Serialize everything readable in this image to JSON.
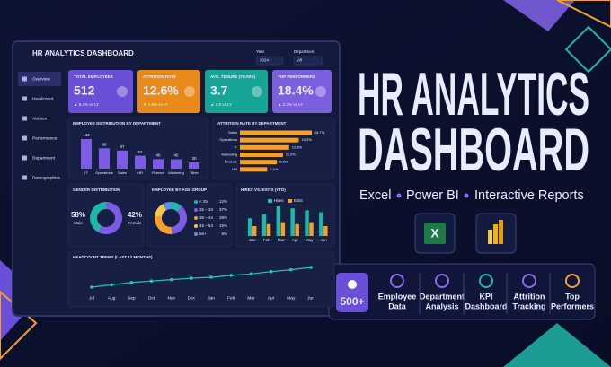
{
  "banner": {
    "title_lines": [
      "HR ANALYTICS",
      "DASHBOARD"
    ],
    "tools": [
      "Excel",
      "Power BI",
      "Interactive Reports"
    ],
    "badge": "500+",
    "features": [
      {
        "lines": [
          "Employee",
          "Data"
        ]
      },
      {
        "lines": [
          "Department",
          "Analysis"
        ]
      },
      {
        "lines": [
          "KPI",
          "Dashboard"
        ]
      },
      {
        "lines": [
          "Attrition",
          "Tracking"
        ]
      },
      {
        "lines": [
          "Top",
          "Performers"
        ]
      }
    ]
  },
  "dashboard": {
    "title": "HR ANALYTICS DASHBOARD",
    "filters": [
      {
        "label": "Year",
        "value": "2024"
      },
      {
        "label": "Department",
        "value": "All"
      }
    ],
    "nav": [
      "Overview",
      "Headcount",
      "Attrition",
      "Performance",
      "Department",
      "Demographics"
    ],
    "kpis": [
      {
        "title": "TOTAL EMPLOYEES",
        "value": "512",
        "change": "▲ 8.4% vs LY",
        "color": "#6a4fd8"
      },
      {
        "title": "ATTRITION RATE",
        "value": "12.6%",
        "change": "▼ 1.8% vs LY",
        "color": "#e8891a"
      },
      {
        "title": "AVG. TENURE (YEARS)",
        "value": "3.7",
        "change": "▲ 0.6 vs LY",
        "color": "#17a596"
      },
      {
        "title": "TOP PERFORMERS",
        "value": "18.4%",
        "change": "▲ 2.3% vs LY",
        "color": "#7b5fe0"
      }
    ],
    "charts": [
      {
        "type": "bar",
        "title": "EMPLOYEE DISTRIBUTION BY DEPARTMENT",
        "categories": [
          "IT",
          "Operations",
          "Sales",
          "HR",
          "Finance",
          "Marketing",
          "Other"
        ],
        "values": [
          142,
          98,
          87,
          62,
          46,
          45,
          30
        ],
        "color": "#7c5ce6"
      },
      {
        "type": "hbar",
        "title": "ATTRITION RATE BY DEPARTMENT",
        "categories": [
          "Sales",
          "Operations",
          "IT",
          "Marketing",
          "Finance",
          "HR"
        ],
        "values": [
          18.7,
          15.3,
          12.8,
          11.2,
          9.6,
          7.1
        ],
        "value_labels": [
          "18.7%",
          "15.3%",
          "12.8%",
          "11.2%",
          "9.6%",
          "7.1%"
        ],
        "color": "#f5a02a"
      },
      {
        "type": "donut",
        "title": "GENDER DISTRIBUTION",
        "categories": [
          "Male",
          "Female"
        ],
        "values": [
          58,
          42
        ],
        "value_labels": [
          "58%",
          "42%"
        ],
        "colors": [
          "#7c5ce6",
          "#1fb5a8"
        ]
      },
      {
        "type": "donut",
        "title": "EMPLOYEE BY AGE GROUP",
        "categories": [
          "< 25",
          "25 – 34",
          "35 – 44",
          "45 – 54",
          "55+"
        ],
        "values": [
          12,
          37,
          28,
          15,
          8
        ],
        "value_labels": [
          "12%",
          "37%",
          "28%",
          "15%",
          "8%"
        ],
        "colors": [
          "#1fb5a8",
          "#7c5ce6",
          "#f5a02a",
          "#f2c94c",
          "#5b8def"
        ]
      },
      {
        "type": "grouped_bar",
        "title": "HIRES VS. EXITS (YTD)",
        "categories": [
          "Jan",
          "Feb",
          "Mar",
          "Apr",
          "May",
          "Jun"
        ],
        "series": [
          {
            "name": "Hires",
            "color": "#1fb5a8",
            "values": [
              18,
              22,
              30,
              28,
              26,
              24
            ]
          },
          {
            "name": "Exits",
            "color": "#f5a02a",
            "values": [
              10,
              12,
              14,
              12,
              14,
              10
            ]
          }
        ]
      },
      {
        "type": "line",
        "title": "HEADCOUNT TREND (LAST 12 MONTHS)",
        "categories": [
          "Jul",
          "Aug",
          "Sep",
          "Oct",
          "Nov",
          "Dec",
          "Jan",
          "Feb",
          "Mar",
          "Apr",
          "May",
          "Jun"
        ],
        "values": [
          470,
          475,
          480,
          483,
          486,
          489,
          491,
          495,
          498,
          503,
          507,
          512
        ],
        "color": "#23c6b4"
      }
    ]
  }
}
